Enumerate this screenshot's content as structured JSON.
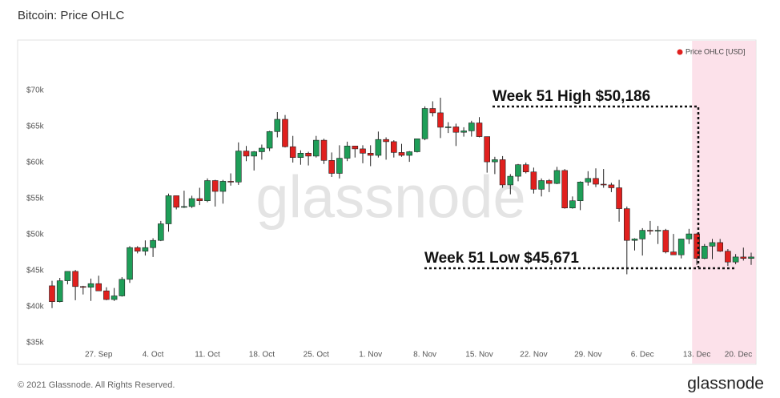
{
  "chart_data": {
    "type": "candlestick",
    "title": "Bitcoin: Price OHLC",
    "watermark": "glassnode",
    "footer": "© 2021 Glassnode. All Rights Reserved.",
    "logo": "glassnode",
    "annotations": [
      {
        "text": "Week 51 High $50,186"
      },
      {
        "text": "Week 51 Low $45,671"
      }
    ],
    "up_color": "#1e9e58",
    "down_color": "#e0201e",
    "categories": [
      null,
      null,
      null,
      null,
      null,
      null,
      "27. Sep",
      null,
      null,
      null,
      null,
      null,
      null,
      "4. Oct",
      null,
      null,
      null,
      null,
      null,
      null,
      "11. Oct",
      null,
      null,
      null,
      null,
      null,
      null,
      "18. Oct",
      null,
      null,
      null,
      null,
      null,
      null,
      "25. Oct",
      null,
      null,
      null,
      null,
      null,
      null,
      "1. Nov",
      null,
      null,
      null,
      null,
      null,
      null,
      "8. Nov",
      null,
      null,
      null,
      null,
      null,
      null,
      "15. Nov",
      null,
      null,
      null,
      null,
      null,
      null,
      "22. Nov",
      null,
      null,
      null,
      null,
      null,
      null,
      "29. Nov",
      null,
      null,
      null,
      null,
      null,
      null,
      "6. Dec",
      null,
      null,
      null,
      null,
      null,
      null,
      "13. Dec",
      null,
      null,
      null,
      null,
      null,
      null,
      "20. Dec"
    ],
    "series": [
      {
        "name": "Price OHLC [USD]",
        "color": "#e0201e",
        "open": [
          42900,
          40700,
          43600,
          44900,
          42800,
          42700,
          43200,
          42200,
          41000,
          41500,
          43800,
          48200,
          47700,
          48200,
          49200,
          51500,
          55400,
          53800,
          53900,
          55000,
          54700,
          57500,
          56000,
          57400,
          57300,
          61600,
          60900,
          61500,
          62000,
          64300,
          66000,
          62200,
          60700,
          61300,
          60900,
          63100,
          60300,
          58500,
          60600,
          62300,
          61900,
          61300,
          61000,
          63200,
          62900,
          61400,
          61000,
          61500,
          63300,
          67500,
          66900,
          64900,
          64950,
          64200,
          64400,
          65500,
          63600,
          60100,
          60400,
          56900,
          58100,
          59700,
          58700,
          56300,
          57500,
          57100,
          58900,
          53700,
          54700,
          57300,
          57800,
          57000,
          56900,
          56500,
          53600,
          49200,
          49400,
          50600,
          50500,
          50600,
          47600,
          47200,
          49400,
          50100,
          46700,
          48400,
          48900,
          47700,
          46200,
          46900,
          46700
        ],
        "high": [
          43600,
          44000,
          44900,
          45100,
          42900,
          43900,
          44300,
          42700,
          42600,
          44100,
          48400,
          48400,
          49200,
          49500,
          51900,
          55700,
          55400,
          56100,
          55400,
          56500,
          57800,
          57600,
          57600,
          58500,
          62800,
          62300,
          61600,
          62500,
          64400,
          67000,
          66600,
          63700,
          61700,
          61500,
          63700,
          63300,
          61400,
          62400,
          62900,
          62300,
          62400,
          62400,
          64300,
          63500,
          63100,
          62600,
          61600,
          63300,
          67800,
          68500,
          69000,
          65600,
          65400,
          64900,
          65800,
          66300,
          63600,
          60800,
          60900,
          58400,
          59800,
          60000,
          59300,
          57800,
          57700,
          59400,
          59100,
          55300,
          57400,
          58800,
          59200,
          59100,
          57200,
          57600,
          53900,
          49500,
          50900,
          51900,
          51200,
          50800,
          50100,
          49400,
          50800,
          50186,
          48700,
          49400,
          49400,
          48000,
          47300,
          48200,
          47500
        ],
        "low": [
          39800,
          40600,
          43100,
          40900,
          41700,
          40800,
          42200,
          40900,
          40800,
          41400,
          43300,
          47400,
          47100,
          46900,
          49100,
          50400,
          53500,
          53700,
          53700,
          54100,
          54500,
          53900,
          54300,
          56800,
          56900,
          60200,
          58900,
          60400,
          61600,
          63500,
          62100,
          60000,
          59700,
          59600,
          60700,
          59800,
          58000,
          57800,
          60200,
          60700,
          59900,
          59500,
          60700,
          60400,
          60700,
          60800,
          60100,
          61400,
          63100,
          66400,
          63400,
          64100,
          62300,
          63600,
          63600,
          63500,
          58600,
          58400,
          56500,
          55600,
          57400,
          58500,
          55700,
          55300,
          55900,
          57000,
          53600,
          53600,
          53400,
          56800,
          56600,
          56500,
          55900,
          51800,
          44500,
          47800,
          47100,
          50000,
          48700,
          47400,
          47300,
          46700,
          48700,
          45800,
          46600,
          46600,
          47600,
          45671,
          45900,
          46400,
          45800
        ],
        "close": [
          40700,
          43600,
          44900,
          42800,
          42700,
          43200,
          42200,
          41000,
          41500,
          43800,
          48200,
          47700,
          48200,
          49200,
          51500,
          55400,
          53800,
          53900,
          55000,
          54700,
          57500,
          56000,
          57400,
          57300,
          61600,
          60900,
          61500,
          62000,
          64300,
          66000,
          62200,
          60700,
          61300,
          60900,
          63100,
          60300,
          58500,
          60600,
          62300,
          61900,
          61300,
          61000,
          63200,
          62900,
          61400,
          61000,
          61500,
          63300,
          67500,
          66900,
          64900,
          64950,
          64200,
          64400,
          65500,
          63600,
          60100,
          60400,
          56900,
          58100,
          59700,
          58700,
          56300,
          57500,
          57100,
          58900,
          53700,
          54700,
          57300,
          57800,
          57000,
          56900,
          56500,
          53600,
          49200,
          49400,
          50600,
          50500,
          50600,
          47600,
          47200,
          49400,
          50100,
          46700,
          48400,
          48900,
          47700,
          46200,
          46900,
          46700,
          46900
        ]
      }
    ],
    "ylim": [
      32000,
      77000
    ],
    "yticks": [
      {
        "value": 35000,
        "label": "$35k"
      },
      {
        "value": 40000,
        "label": "$40k"
      },
      {
        "value": 45000,
        "label": "$45k"
      },
      {
        "value": 50000,
        "label": "$50k"
      },
      {
        "value": 55000,
        "label": "$55k"
      },
      {
        "value": 60000,
        "label": "$60k"
      },
      {
        "value": 65000,
        "label": "$65k"
      },
      {
        "value": 70000,
        "label": "$70k"
      }
    ],
    "grid": false,
    "legend": "top-right"
  }
}
